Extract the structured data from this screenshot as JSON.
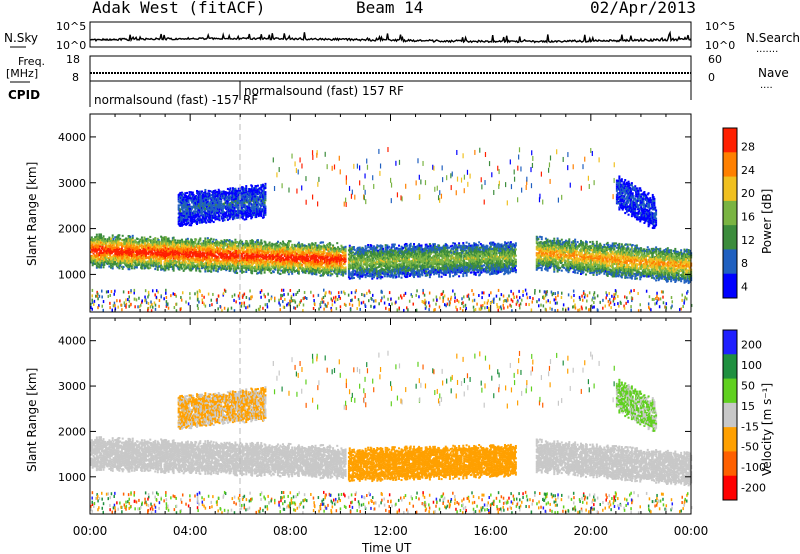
{
  "header": {
    "station": "Adak West (fitACF)",
    "beam": "Beam 14",
    "date": "02/Apr/2013"
  },
  "left_labels": {
    "nsky": "N.Sky",
    "freq_line1": "Freq.",
    "freq_line2": "[MHz]",
    "cpid": "CPID"
  },
  "right_labels": {
    "nsearch": "N.Search",
    "nsearch_dots": ".......",
    "nave": "Nave",
    "nave_dots": "...."
  },
  "noise_panel": {
    "ytick_top": "10^5",
    "ytick_bottom": "10^0",
    "rtick_top": "10^5",
    "rtick_bottom": "10^0"
  },
  "freq_panel": {
    "ytick_top": "18",
    "ytick_bottom": "8",
    "rtick_top": "60",
    "rtick_bottom": "0"
  },
  "cpid_panel": {
    "label_1": "normalsound (fast) -157 RF",
    "label_2": "normalsound (fast) 157 RF"
  },
  "power_panel": {
    "ylabel": "Slant Range [km]",
    "cbar_label": "Power [dB]",
    "cbar_ticks": [
      "28",
      "24",
      "20",
      "16",
      "12",
      "8",
      "4"
    ]
  },
  "velocity_panel": {
    "ylabel": "Slant Range [km]",
    "cbar_label": "Velocity [m s⁻¹]",
    "cbar_ticks": [
      "200",
      "100",
      "50",
      "15",
      "-15",
      "-50",
      "-100",
      "-200"
    ]
  },
  "chart_data": {
    "type": "heatmap",
    "xlabel": "Time UT",
    "x_ticks": [
      "00:00",
      "04:00",
      "08:00",
      "12:00",
      "16:00",
      "20:00",
      "00:00"
    ],
    "xlim_hours": [
      0,
      24
    ],
    "y_ticks": [
      "1000",
      "2000",
      "3000",
      "4000"
    ],
    "ylim_km": [
      180,
      4500
    ],
    "power_colorscale": {
      "range_db": [
        0,
        30
      ],
      "colors": [
        "#0000ff",
        "#2060c0",
        "#3c8c3c",
        "#7ab442",
        "#f0c020",
        "#ff8000",
        "#ff2000"
      ]
    },
    "velocity_colorscale": {
      "range_ms": [
        -250,
        250
      ],
      "colors": [
        "#ff0000",
        "#ff6000",
        "#ffa000",
        "#c8c8c8",
        "#60d020",
        "#209040",
        "#2020ff"
      ]
    },
    "scatter_bands": [
      {
        "t_start": 0.0,
        "t_end": 10.2,
        "range_start_km": 1500,
        "range_end_km": 1300,
        "power_db": 26,
        "velocity_ms": 0
      },
      {
        "t_start": 10.3,
        "t_end": 17.0,
        "range_start_km": 1250,
        "range_end_km": 1350,
        "power_db": 14,
        "velocity_ms": -60
      },
      {
        "t_start": 17.8,
        "t_end": 24.0,
        "range_start_km": 1450,
        "range_end_km": 1150,
        "power_db": 20,
        "velocity_ms": 0
      },
      {
        "t_start": 3.5,
        "t_end": 7.0,
        "range_start_km": 2400,
        "range_end_km": 2600,
        "power_db": 6,
        "velocity_ms": -40
      },
      {
        "t_start": 21.0,
        "t_end": 22.6,
        "range_start_km": 2800,
        "range_end_km": 2300,
        "power_db": 5,
        "velocity_ms": 40
      }
    ]
  }
}
